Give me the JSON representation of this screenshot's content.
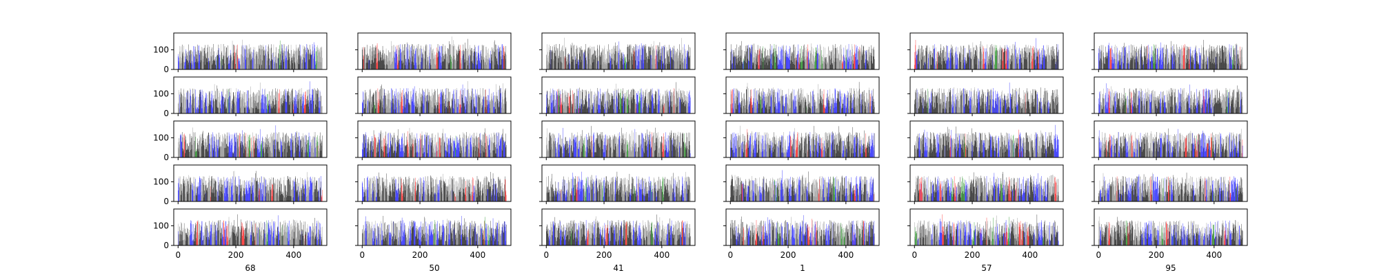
{
  "figure": {
    "rows": 5,
    "cols": 6,
    "sharey": true,
    "sharex": true
  },
  "chart_data": {
    "type": "bar",
    "n_bars_per_panel": 500,
    "xlim": [
      -15,
      515
    ],
    "ylim": [
      0,
      185
    ],
    "xticks": [
      0,
      200,
      400
    ],
    "xtick_labels": [
      "0",
      "200",
      "400"
    ],
    "yticks": [
      0,
      100
    ],
    "ytick_labels": [
      "0",
      "100"
    ],
    "column_xlabels": [
      "68",
      "50",
      "41",
      "1",
      "57",
      "95"
    ],
    "bar_colors": [
      "#000000",
      "#808080",
      "#0000ff",
      "#ff0000",
      "#008000"
    ],
    "grid": false,
    "legend": "none"
  }
}
